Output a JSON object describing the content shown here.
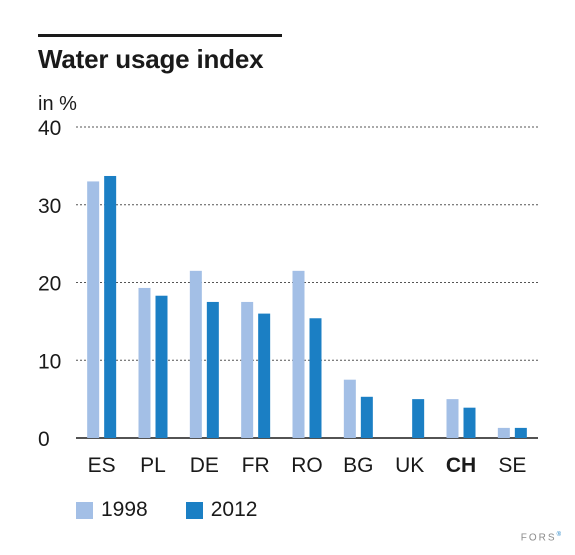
{
  "chart_data": {
    "type": "bar",
    "title": "Water usage index",
    "ylabel": "in %",
    "ylim": [
      0,
      40
    ],
    "yticks": [
      0,
      10,
      20,
      30,
      40
    ],
    "grid": true,
    "legend_position": "bottom",
    "categories": [
      "ES",
      "PL",
      "DE",
      "FR",
      "RO",
      "BG",
      "UK",
      "CH",
      "SE"
    ],
    "highlighted_category": "CH",
    "series": [
      {
        "name": "1998",
        "color": "#a3bfe6",
        "values": [
          33,
          19.3,
          21.5,
          17.5,
          21.5,
          7.5,
          null,
          5,
          1.3
        ]
      },
      {
        "name": "2012",
        "color": "#1b7fc4",
        "values": [
          33.7,
          18.3,
          17.5,
          16,
          15.4,
          5.3,
          5,
          3.9,
          1.3
        ]
      }
    ]
  },
  "brand": {
    "text": "FORS",
    "mark": "®"
  }
}
